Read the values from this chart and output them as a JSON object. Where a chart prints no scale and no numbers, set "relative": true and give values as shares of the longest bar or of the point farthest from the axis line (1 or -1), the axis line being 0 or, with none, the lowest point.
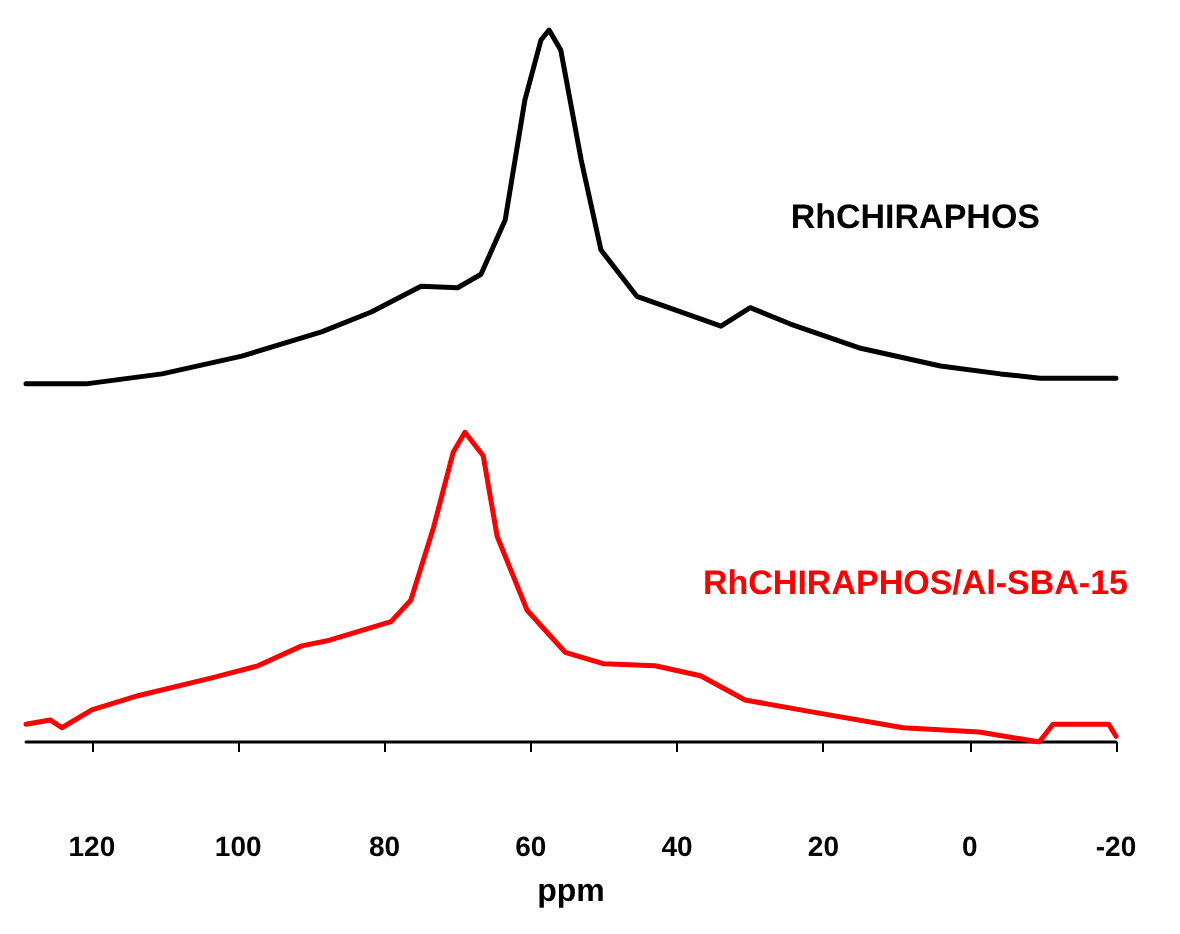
{
  "chart_data": {
    "type": "line",
    "relative": true,
    "xlabel": "ppm",
    "xlim": [
      129,
      -20
    ],
    "xticks": [
      120,
      100,
      80,
      60,
      40,
      20,
      0,
      -20
    ],
    "grid": false,
    "legend": false,
    "marker": "none",
    "line_style": "solid",
    "series": [
      {
        "name": "RhCHIRAPHOS",
        "color": "#000000",
        "x": [
          129,
          120.8,
          110.4,
          99.5,
          88.6,
          81.8,
          75,
          70,
          66.8,
          63.5,
          60.8,
          58.6,
          57.5,
          55.9,
          53.1,
          50.4,
          45.5,
          39.5,
          34,
          30,
          24.5,
          14.9,
          4,
          -4.2,
          -9.6,
          -20
        ],
        "values": [
          0.503,
          0.503,
          0.517,
          0.542,
          0.576,
          0.604,
          0.64,
          0.638,
          0.657,
          0.733,
          0.902,
          0.986,
          1,
          0.972,
          0.817,
          0.691,
          0.626,
          0.604,
          0.584,
          0.61,
          0.587,
          0.553,
          0.528,
          0.517,
          0.511,
          0.511
        ]
      },
      {
        "name": "RhCHIRAPHOS/Al-SBA-15",
        "color": "#ff0000",
        "x": [
          129,
          125.7,
          124.1,
          120,
          113.7,
          103.6,
          97.3,
          91.3,
          87.5,
          79.1,
          76.4,
          73.3,
          70.6,
          69,
          66.5,
          64.6,
          60.5,
          55.3,
          50.1,
          43,
          36.8,
          30.7,
          21.4,
          9.1,
          -1.3,
          -9.5,
          -11.4,
          -19,
          -20
        ],
        "values": [
          0.025,
          0.031,
          0.02,
          0.045,
          0.065,
          0.09,
          0.107,
          0.135,
          0.143,
          0.169,
          0.199,
          0.301,
          0.407,
          0.435,
          0.402,
          0.289,
          0.185,
          0.126,
          0.11,
          0.107,
          0.093,
          0.059,
          0.042,
          0.02,
          0.014,
          0,
          0.025,
          0.025,
          0.008
        ]
      }
    ]
  }
}
